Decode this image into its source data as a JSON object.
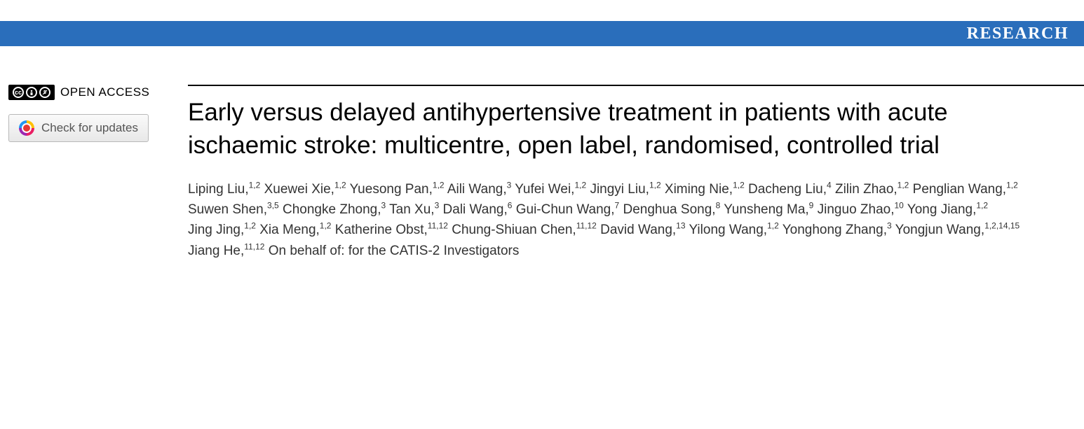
{
  "header": {
    "section_label": "RESEARCH",
    "bar_color": "#2a6ebb"
  },
  "sidebar": {
    "open_access_label": "OPEN ACCESS",
    "cc_text": "cc",
    "check_updates_label": "Check for updates"
  },
  "article": {
    "title": "Early versus delayed antihypertensive treatment in patients with acute ischaemic stroke: multicentre, open label, randomised, controlled trial",
    "authors": [
      {
        "name": "Liping Liu",
        "affil": "1,2"
      },
      {
        "name": "Xuewei Xie",
        "affil": "1,2"
      },
      {
        "name": "Yuesong Pan",
        "affil": "1,2"
      },
      {
        "name": "Aili Wang",
        "affil": "3"
      },
      {
        "name": "Yufei Wei",
        "affil": "1,2"
      },
      {
        "name": "Jingyi Liu",
        "affil": "1,2"
      },
      {
        "name": "Ximing Nie",
        "affil": "1,2"
      },
      {
        "name": "Dacheng Liu",
        "affil": "4"
      },
      {
        "name": "Zilin Zhao",
        "affil": "1,2"
      },
      {
        "name": "Penglian Wang",
        "affil": "1,2"
      },
      {
        "name": "Suwen Shen",
        "affil": "3,5"
      },
      {
        "name": "Chongke Zhong",
        "affil": "3"
      },
      {
        "name": "Tan Xu",
        "affil": "3"
      },
      {
        "name": "Dali Wang",
        "affil": "6"
      },
      {
        "name": "Gui-Chun Wang",
        "affil": "7"
      },
      {
        "name": "Denghua Song",
        "affil": "8"
      },
      {
        "name": "Yunsheng Ma",
        "affil": "9"
      },
      {
        "name": "Jinguo Zhao",
        "affil": "10"
      },
      {
        "name": "Yong Jiang",
        "affil": "1,2"
      },
      {
        "name": "Jing Jing",
        "affil": "1,2"
      },
      {
        "name": "Xia Meng",
        "affil": "1,2"
      },
      {
        "name": "Katherine Obst",
        "affil": "11,12"
      },
      {
        "name": "Chung-Shiuan Chen",
        "affil": "11,12"
      },
      {
        "name": "David Wang",
        "affil": "13"
      },
      {
        "name": "Yilong Wang",
        "affil": "1,2"
      },
      {
        "name": "Yonghong Zhang",
        "affil": "3"
      },
      {
        "name": "Yongjun Wang",
        "affil": "1,2,14,15"
      },
      {
        "name": "Jiang He",
        "affil": "11,12"
      }
    ],
    "on_behalf_text": "On behalf of: for the CATIS-2 Investigators"
  }
}
